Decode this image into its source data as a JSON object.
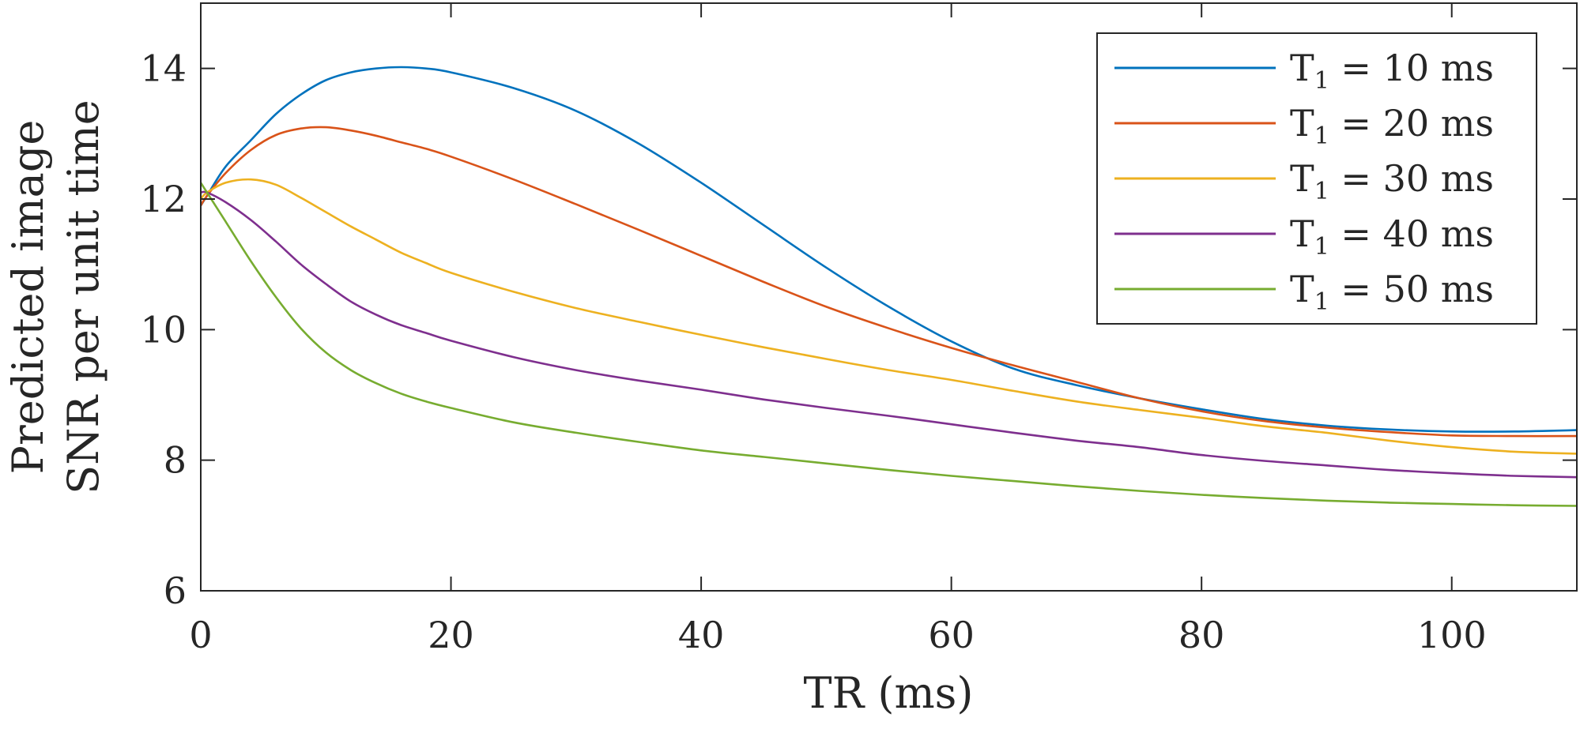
{
  "chart_data": {
    "type": "line",
    "title": "",
    "xlabel": "TR (ms)",
    "ylabel_lines": [
      "Predicted image",
      "SNR per unit time"
    ],
    "xlim": [
      0,
      110
    ],
    "ylim": [
      6,
      15
    ],
    "xticks": [
      0,
      20,
      40,
      60,
      80,
      100
    ],
    "yticks": [
      6,
      8,
      10,
      12,
      14
    ],
    "grid": false,
    "legend_position": "top-right",
    "legend_prefix": "T",
    "legend_subscript": "1",
    "series": [
      {
        "name": "T1 = 10 ms",
        "label_rest": " = 10 ms",
        "color": "#0072BD",
        "x": [
          0,
          0.5,
          2,
          4,
          6,
          8,
          10,
          12,
          14,
          16,
          18,
          20,
          25,
          30,
          35,
          40,
          45,
          50,
          55,
          60,
          65,
          70,
          75,
          80,
          85,
          90,
          95,
          100,
          105,
          110
        ],
        "y": [
          11.9,
          12.05,
          12.5,
          12.9,
          13.3,
          13.6,
          13.82,
          13.94,
          14.0,
          14.02,
          14.0,
          13.94,
          13.7,
          13.35,
          12.85,
          12.25,
          11.6,
          10.95,
          10.35,
          9.82,
          9.4,
          9.15,
          8.95,
          8.78,
          8.63,
          8.53,
          8.47,
          8.44,
          8.44,
          8.46
        ]
      },
      {
        "name": "T1 = 20 ms",
        "label_rest": " = 20 ms",
        "color": "#D95319",
        "x": [
          0,
          0.5,
          2,
          4,
          6,
          8,
          10,
          12,
          14,
          16,
          18,
          20,
          25,
          30,
          35,
          40,
          45,
          50,
          55,
          60,
          65,
          70,
          75,
          80,
          85,
          90,
          95,
          100,
          105,
          110
        ],
        "y": [
          11.9,
          12.05,
          12.4,
          12.75,
          12.98,
          13.08,
          13.1,
          13.05,
          12.97,
          12.87,
          12.77,
          12.65,
          12.3,
          11.92,
          11.53,
          11.13,
          10.73,
          10.35,
          10.02,
          9.72,
          9.45,
          9.2,
          8.95,
          8.75,
          8.6,
          8.5,
          8.43,
          8.38,
          8.37,
          8.37
        ]
      },
      {
        "name": "T1 = 30 ms",
        "label_rest": " = 30 ms",
        "color": "#EDB120",
        "x": [
          0,
          0.5,
          2,
          4,
          6,
          8,
          10,
          12,
          14,
          16,
          18,
          20,
          25,
          30,
          35,
          40,
          45,
          50,
          55,
          60,
          65,
          70,
          75,
          80,
          85,
          90,
          95,
          100,
          105,
          110
        ],
        "y": [
          12.0,
          12.1,
          12.25,
          12.3,
          12.22,
          12.02,
          11.8,
          11.58,
          11.38,
          11.18,
          11.02,
          10.87,
          10.58,
          10.33,
          10.12,
          9.92,
          9.73,
          9.55,
          9.38,
          9.23,
          9.06,
          8.9,
          8.77,
          8.65,
          8.52,
          8.42,
          8.3,
          8.2,
          8.13,
          8.1
        ]
      },
      {
        "name": "T1 = 40 ms",
        "label_rest": " = 40 ms",
        "color": "#7E2F8E",
        "x": [
          0,
          0.5,
          2,
          4,
          6,
          8,
          10,
          12,
          14,
          16,
          18,
          20,
          25,
          30,
          35,
          40,
          45,
          50,
          55,
          60,
          65,
          70,
          75,
          80,
          85,
          90,
          95,
          100,
          105,
          110
        ],
        "y": [
          12.1,
          12.1,
          11.95,
          11.68,
          11.35,
          11.0,
          10.7,
          10.43,
          10.23,
          10.07,
          9.95,
          9.83,
          9.58,
          9.38,
          9.22,
          9.08,
          8.93,
          8.8,
          8.68,
          8.55,
          8.42,
          8.3,
          8.2,
          8.08,
          7.99,
          7.92,
          7.85,
          7.8,
          7.76,
          7.74
        ]
      },
      {
        "name": "T1 = 50 ms",
        "label_rest": " = 50 ms",
        "color": "#77AC30",
        "x": [
          0,
          0.5,
          2,
          4,
          6,
          8,
          10,
          12,
          14,
          16,
          18,
          20,
          25,
          30,
          35,
          40,
          45,
          50,
          55,
          60,
          65,
          70,
          75,
          80,
          85,
          90,
          95,
          100,
          105,
          110
        ],
        "y": [
          12.25,
          12.1,
          11.65,
          11.05,
          10.5,
          10.02,
          9.65,
          9.38,
          9.18,
          9.02,
          8.9,
          8.8,
          8.58,
          8.42,
          8.28,
          8.15,
          8.05,
          7.95,
          7.85,
          7.76,
          7.68,
          7.6,
          7.53,
          7.47,
          7.42,
          7.38,
          7.35,
          7.33,
          7.31,
          7.3
        ]
      }
    ]
  }
}
